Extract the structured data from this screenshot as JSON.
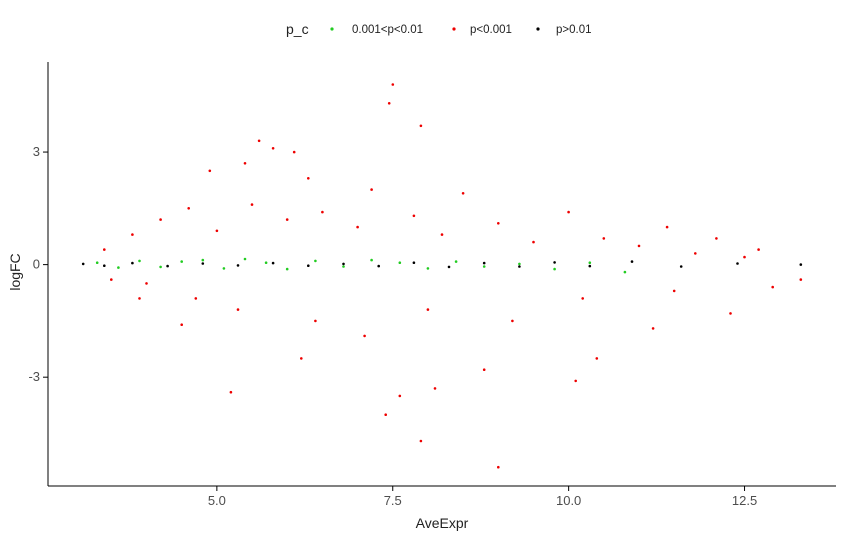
{
  "chart_data": {
    "type": "scatter",
    "xlabel": "AveExpr",
    "ylabel": "logFC",
    "xlim": [
      2.6,
      13.8
    ],
    "ylim": [
      -5.9,
      5.4
    ],
    "x_ticks": [
      5.0,
      7.5,
      10.0,
      12.5
    ],
    "x_tick_labels": [
      "5.0",
      "7.5",
      "10.0",
      "12.5"
    ],
    "y_ticks": [
      3,
      0,
      -3
    ],
    "y_tick_labels": [
      "3",
      "0",
      "-3"
    ],
    "grid": false,
    "legend": {
      "title": "p_c",
      "position": "top",
      "entries": [
        "0.001<p<0.01",
        "p<0.001",
        "p>0.01"
      ]
    },
    "series": [
      {
        "name": "0.001<p<0.01",
        "color": "#22cc22",
        "points": [
          [
            3.3,
            0.05
          ],
          [
            3.6,
            -0.08
          ],
          [
            3.9,
            0.1
          ],
          [
            4.2,
            -0.06
          ],
          [
            4.5,
            0.08
          ],
          [
            4.8,
            0.12
          ],
          [
            5.1,
            -0.1
          ],
          [
            5.4,
            0.15
          ],
          [
            5.7,
            0.05
          ],
          [
            6.0,
            -0.12
          ],
          [
            6.4,
            0.1
          ],
          [
            6.8,
            -0.05
          ],
          [
            7.2,
            0.12
          ],
          [
            7.6,
            0.05
          ],
          [
            8.0,
            -0.1
          ],
          [
            8.4,
            0.08
          ],
          [
            8.8,
            -0.05
          ],
          [
            9.3,
            0.02
          ],
          [
            9.8,
            -0.12
          ],
          [
            10.3,
            0.05
          ],
          [
            10.8,
            -0.2
          ]
        ]
      },
      {
        "name": "p<0.001",
        "color": "#ee0000",
        "points": [
          [
            7.5,
            4.8
          ],
          [
            7.45,
            4.3
          ],
          [
            7.9,
            3.7
          ],
          [
            5.6,
            3.3
          ],
          [
            5.8,
            3.1
          ],
          [
            6.1,
            3.0
          ],
          [
            5.4,
            2.7
          ],
          [
            4.9,
            2.5
          ],
          [
            6.3,
            2.3
          ],
          [
            7.2,
            2.0
          ],
          [
            8.5,
            1.9
          ],
          [
            10.0,
            1.4
          ],
          [
            11.4,
            1.0
          ],
          [
            12.1,
            0.7
          ],
          [
            12.7,
            0.4
          ],
          [
            13.3,
            -0.4
          ],
          [
            12.3,
            -1.3
          ],
          [
            11.2,
            -1.7
          ],
          [
            10.4,
            -2.5
          ],
          [
            10.1,
            -3.1
          ],
          [
            8.8,
            -2.8
          ],
          [
            8.1,
            -3.3
          ],
          [
            7.6,
            -3.5
          ],
          [
            7.4,
            -4.0
          ],
          [
            7.9,
            -4.7
          ],
          [
            9.0,
            -5.4
          ],
          [
            6.2,
            -2.5
          ],
          [
            5.2,
            -3.4
          ],
          [
            4.5,
            -1.6
          ],
          [
            3.9,
            -0.9
          ],
          [
            3.5,
            -0.4
          ],
          [
            3.4,
            0.4
          ],
          [
            3.8,
            0.8
          ],
          [
            4.2,
            1.2
          ],
          [
            4.6,
            1.5
          ],
          [
            5.0,
            0.9
          ],
          [
            5.5,
            1.6
          ],
          [
            6.0,
            1.2
          ],
          [
            6.5,
            1.4
          ],
          [
            7.0,
            1.0
          ],
          [
            7.8,
            1.3
          ],
          [
            8.2,
            0.8
          ],
          [
            9.0,
            1.1
          ],
          [
            9.5,
            0.6
          ],
          [
            10.5,
            0.7
          ],
          [
            11.0,
            0.5
          ],
          [
            11.8,
            0.3
          ],
          [
            12.5,
            0.2
          ],
          [
            4.0,
            -0.5
          ],
          [
            4.7,
            -0.9
          ],
          [
            5.3,
            -1.2
          ],
          [
            6.4,
            -1.5
          ],
          [
            7.1,
            -1.9
          ],
          [
            8.0,
            -1.2
          ],
          [
            9.2,
            -1.5
          ],
          [
            10.2,
            -0.9
          ],
          [
            11.5,
            -0.7
          ],
          [
            12.9,
            -0.6
          ]
        ]
      },
      {
        "name": "p>0.01",
        "color": "#000000",
        "points": [
          [
            3.1,
            0.02
          ],
          [
            3.4,
            -0.03
          ],
          [
            3.8,
            0.04
          ],
          [
            4.3,
            -0.04
          ],
          [
            4.8,
            0.03
          ],
          [
            5.3,
            -0.02
          ],
          [
            5.8,
            0.04
          ],
          [
            6.3,
            -0.03
          ],
          [
            6.8,
            0.02
          ],
          [
            7.3,
            -0.04
          ],
          [
            7.8,
            0.05
          ],
          [
            8.3,
            -0.06
          ],
          [
            8.8,
            0.04
          ],
          [
            9.3,
            -0.05
          ],
          [
            9.8,
            0.06
          ],
          [
            10.3,
            -0.04
          ],
          [
            10.9,
            0.08
          ],
          [
            11.6,
            -0.05
          ],
          [
            12.4,
            0.03
          ],
          [
            13.3,
            0.0
          ]
        ]
      }
    ]
  }
}
